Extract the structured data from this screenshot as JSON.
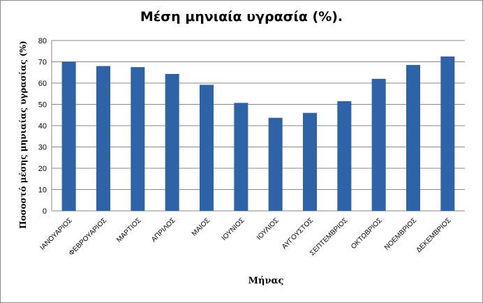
{
  "chart_data": {
    "type": "bar",
    "title": "Μέση μηνιαία υγρασία (%).",
    "xlabel": "Μήνας",
    "ylabel": "Ποσοστό μέσης μηνιαίας υγρασίας (%)",
    "categories": [
      "ΙΑΝΟΥΑΡΙΟΣ",
      "ΦΕΒΡΟΥΑΡΙΟΣ",
      "ΜΑΡΤΙΟΣ",
      "ΑΠΡΙΛΟΣ",
      "ΜΑΙΟΣ",
      "ΙΟΥΝΙΟΣ",
      "ΙΟΥΛΙΟΣ",
      "ΑΥΓΟΥΣΤΟΣ",
      "ΣΕΠΤΕΜΒΡΙΟΣ",
      "ΟΚΤΩΒΡΙΟΣ",
      "ΝΟΕΜΒΡΙΟΣ",
      "ΔΕΚΕΜΒΡΙΟΣ"
    ],
    "values": [
      70,
      68,
      67.5,
      64.3,
      59.2,
      50.7,
      43.7,
      46,
      51.5,
      62,
      68.5,
      72.5
    ],
    "ylim": [
      0,
      80
    ],
    "yticks": [
      0,
      10,
      20,
      30,
      40,
      50,
      60,
      70,
      80
    ],
    "grid": true,
    "legend": "none",
    "bar_color": "#2e63a8",
    "grid_color": "#8a8a8a"
  }
}
